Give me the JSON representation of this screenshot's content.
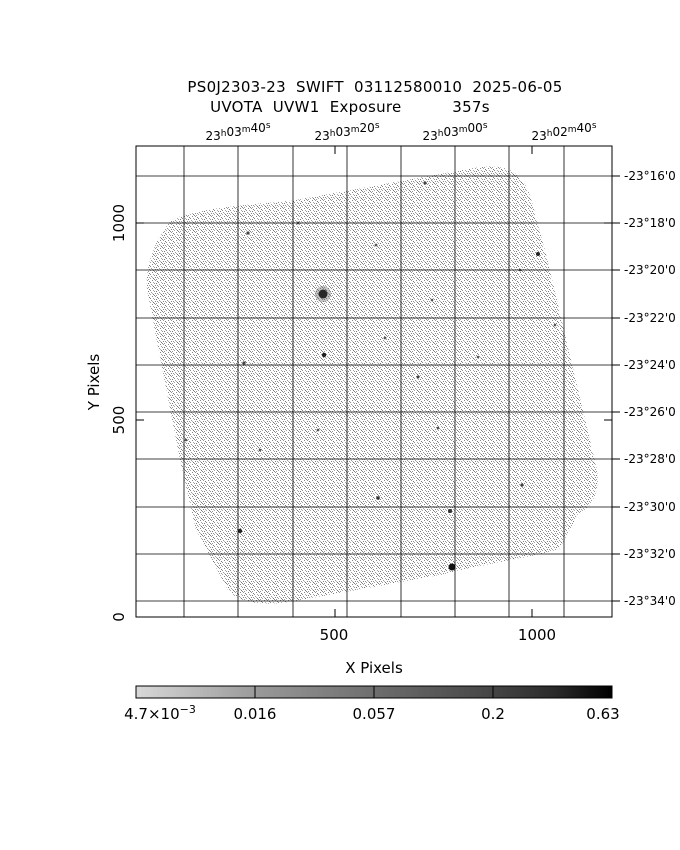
{
  "header": {
    "line1": "PS0J2303-23  SWIFT  03112580010  2025-06-05",
    "line2": "UVOTA  UVW1  Exposure          357s"
  },
  "axes": {
    "xlabel": "X Pixels",
    "ylabel": "Y Pixels",
    "x_ticks": [
      "500",
      "1000"
    ],
    "y_ticks": [
      "0",
      "500",
      "1000"
    ],
    "ra_ticks": [
      {
        "h": "23",
        "m": "03",
        "s": "40"
      },
      {
        "h": "23",
        "m": "03",
        "s": "20"
      },
      {
        "h": "23",
        "m": "03",
        "s": "00"
      },
      {
        "h": "23",
        "m": "02",
        "s": "40"
      }
    ],
    "dec_ticks": [
      "-23°16'0",
      "-23°18'0",
      "-23°20'0",
      "-23°22'0",
      "-23°24'0",
      "-23°26'0",
      "-23°28'0",
      "-23°30'0",
      "-23°32'0",
      "-23°34'0"
    ]
  },
  "colorbar": {
    "labels": [
      {
        "base": "4.7×10",
        "exp": "−3"
      },
      {
        "base": "0.016",
        "exp": ""
      },
      {
        "base": "0.057",
        "exp": ""
      },
      {
        "base": "0.2",
        "exp": ""
      },
      {
        "base": "0.63",
        "exp": ""
      }
    ]
  },
  "colors": {
    "frame": "#000000",
    "exposure": "#8c8c8c"
  }
}
